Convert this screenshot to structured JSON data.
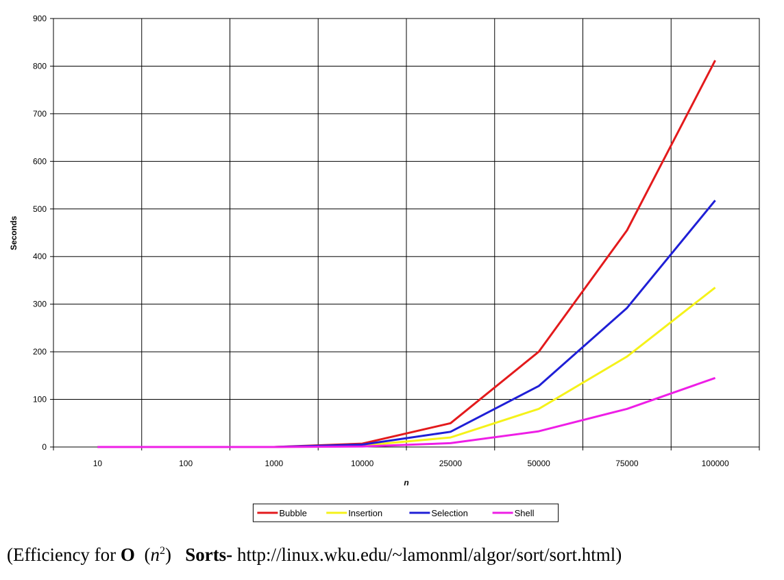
{
  "chart_data": {
    "type": "line",
    "xlabel": "n",
    "ylabel": "Seconds",
    "categories": [
      "10",
      "100",
      "1000",
      "10000",
      "25000",
      "50000",
      "75000",
      "100000"
    ],
    "ylim": [
      0,
      900
    ],
    "yticks": [
      "0",
      "100",
      "200",
      "300",
      "400",
      "500",
      "600",
      "700",
      "800",
      "900"
    ],
    "grid": true,
    "legend_position": "bottom",
    "series": [
      {
        "name": "Bubble",
        "color": "#e31a1c",
        "values": [
          0,
          0,
          0,
          7,
          50,
          200,
          455,
          812
        ]
      },
      {
        "name": "Insertion",
        "color": "#f5f21a",
        "values": [
          0,
          0,
          0,
          3,
          20,
          80,
          190,
          335
        ]
      },
      {
        "name": "Selection",
        "color": "#1f1fd6",
        "values": [
          0,
          0,
          0,
          5,
          32,
          128,
          292,
          518
        ]
      },
      {
        "name": "Shell",
        "color": "#ee1ee6",
        "values": [
          0,
          0,
          0,
          1,
          8,
          33,
          80,
          145
        ]
      }
    ]
  },
  "caption": {
    "open": "(Efficiency for ",
    "bigO": "O",
    "n": "n",
    "exp": "2",
    "close_paren": ")",
    "sorts": "Sorts-",
    "url": "http://linux.wku.edu/~lamonml/algor/sort/sort.html)"
  }
}
